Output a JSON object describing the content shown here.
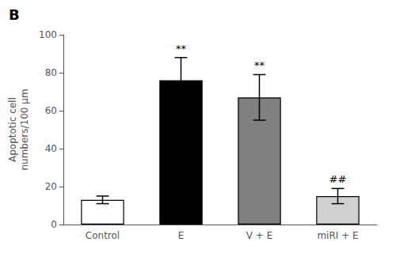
{
  "chart_data": {
    "type": "bar",
    "title": "B",
    "categories": [
      "Control",
      "E",
      "V + E",
      "miRI + E"
    ],
    "values": [
      13,
      76,
      67,
      15
    ],
    "errors": [
      2,
      12,
      12,
      4
    ],
    "colors": [
      "#ffffff",
      "#000000",
      "#808080",
      "#d0d0d0"
    ],
    "ylabel": "Apoptotic cell\nnumbers/100 μm",
    "ylim": [
      0,
      100
    ],
    "yticks": [
      0,
      20,
      40,
      60,
      80,
      100
    ],
    "annotations": [
      {
        "category": "E",
        "text": "**"
      },
      {
        "category": "V + E",
        "text": "**"
      },
      {
        "category": "miRI + E",
        "text": "##"
      }
    ],
    "grid": false
  }
}
